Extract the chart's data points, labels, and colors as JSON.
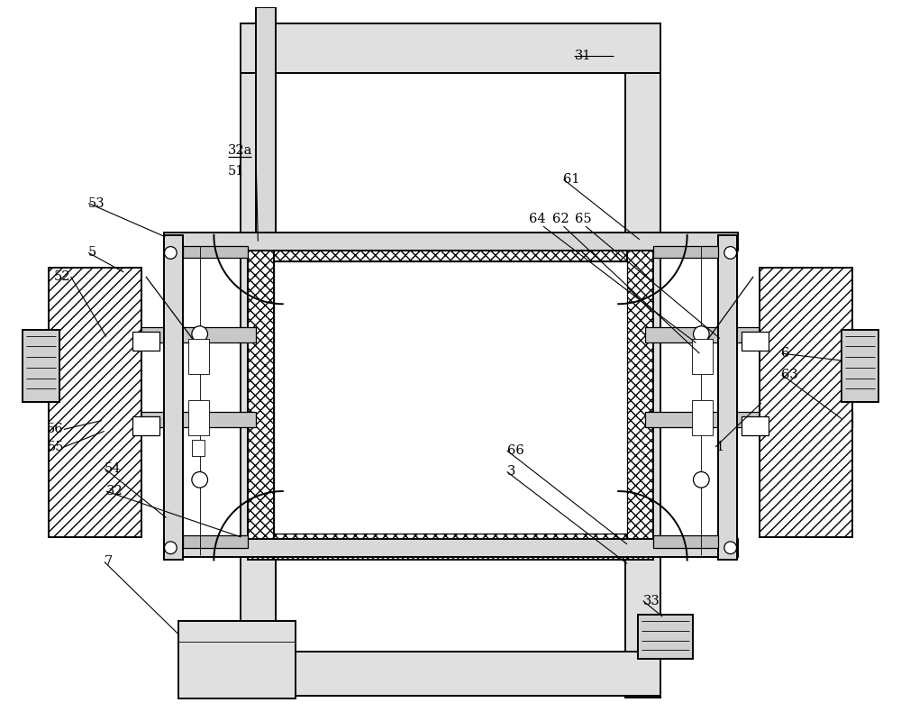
{
  "bg": "#ffffff",
  "lc": "#000000",
  "fig_w": 10.0,
  "fig_h": 8.0,
  "dpi": 100,
  "lw1": 1.4,
  "lw2": 0.9,
  "lw3": 0.6,
  "label_fs": 10.5
}
